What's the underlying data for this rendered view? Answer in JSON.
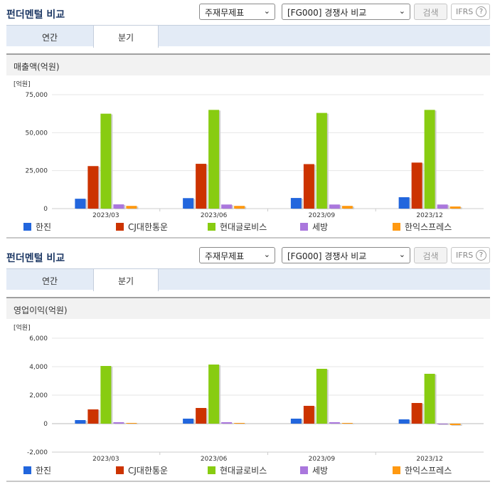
{
  "colors": {
    "title": "#1f3a66",
    "tab_bg": "#e3ebf6",
    "section_bg": "#f2f2f2"
  },
  "series_colors": [
    "#2266dd",
    "#cc3300",
    "#88cc11",
    "#aa77dd",
    "#ff9911"
  ],
  "panels": [
    {
      "title": "펀더멘털 비교",
      "select1": "주재무제표",
      "select2": "[FG000] 경쟁사 비교",
      "search_label": "검색",
      "ifrs_label": "IFRS",
      "help_glyph": "?",
      "tabs": [
        "연간",
        "분기"
      ],
      "active_tab": 1,
      "section_title": "매출액(억원)",
      "unit_label": "[억원]",
      "chart_data": {
        "type": "bar",
        "title": "매출액(억원)",
        "categories": [
          "2023/03",
          "2023/06",
          "2023/09",
          "2023/12"
        ],
        "series": [
          {
            "name": "한진",
            "values": [
              6500,
              6900,
              7000,
              7500
            ]
          },
          {
            "name": "CJ대한통운",
            "values": [
              28000,
              29500,
              29300,
              30300
            ]
          },
          {
            "name": "현대글로비스",
            "values": [
              62500,
              65000,
              63000,
              65000
            ]
          },
          {
            "name": "세방",
            "values": [
              2800,
              2700,
              2700,
              2700
            ]
          },
          {
            "name": "한익스프레스",
            "values": [
              1800,
              1800,
              1800,
              1400
            ]
          }
        ],
        "ylim": [
          0,
          75000
        ],
        "yticks": [
          "0",
          "25,000",
          "50,000",
          "75,000"
        ],
        "ytick_values": [
          0,
          25000,
          50000,
          75000
        ],
        "grid": true,
        "legend": "bottom"
      }
    },
    {
      "title": "펀더멘털 비교",
      "select1": "주재무제표",
      "select2": "[FG000] 경쟁사 비교",
      "search_label": "검색",
      "ifrs_label": "IFRS",
      "help_glyph": "?",
      "tabs": [
        "연간",
        "분기"
      ],
      "active_tab": 1,
      "section_title": "영업이익(억원)",
      "unit_label": "[억원]",
      "chart_data": {
        "type": "bar",
        "title": "영업이익(억원)",
        "categories": [
          "2023/03",
          "2023/06",
          "2023/09",
          "2023/12"
        ],
        "series": [
          {
            "name": "한진",
            "values": [
              250,
              350,
              350,
              300
            ]
          },
          {
            "name": "CJ대한통운",
            "values": [
              1000,
              1100,
              1250,
              1450
            ]
          },
          {
            "name": "현대글로비스",
            "values": [
              4050,
              4150,
              3850,
              3500
            ]
          },
          {
            "name": "세방",
            "values": [
              100,
              100,
              100,
              0
            ]
          },
          {
            "name": "한익스프레스",
            "values": [
              50,
              50,
              50,
              -100
            ]
          }
        ],
        "ylim": [
          -2000,
          6000
        ],
        "yticks": [
          "-2,000",
          "0",
          "2,000",
          "4,000",
          "6,000"
        ],
        "ytick_values": [
          -2000,
          0,
          2000,
          4000,
          6000
        ],
        "grid": true,
        "legend": "bottom"
      }
    }
  ]
}
